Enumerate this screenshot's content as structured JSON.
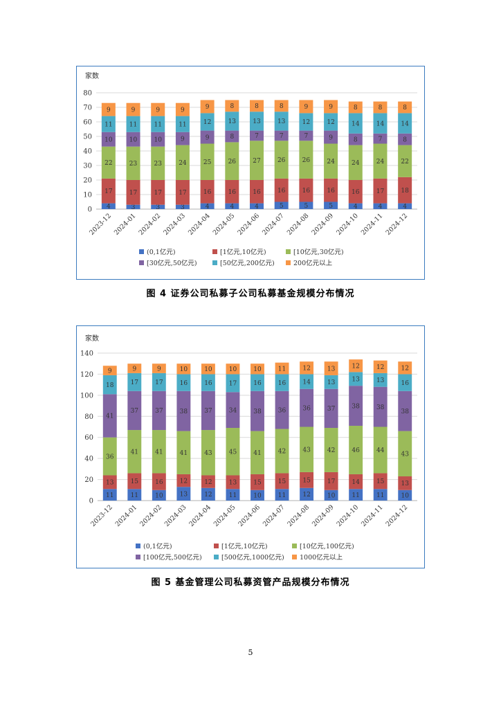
{
  "page": {
    "number": "5"
  },
  "figures": [
    {
      "caption": "图 4   证券公司私募子公司私募基金规模分布情况",
      "colors": [
        "#4472c4",
        "#c0504d",
        "#9bbb59",
        "#8064a2",
        "#4bacc6",
        "#f79646"
      ]
    },
    {
      "caption": "图 5   基金管理公司私募资管产品规模分布情况",
      "colors": [
        "#4472c4",
        "#c0504d",
        "#9bbb59",
        "#8064a2",
        "#4bacc6",
        "#f79646"
      ]
    }
  ],
  "chart_data": [
    {
      "type": "bar",
      "stacked": true,
      "ylabel": "家数",
      "ylim": [
        0,
        80
      ],
      "yticks": [
        0,
        10,
        20,
        30,
        40,
        50,
        60,
        70,
        80
      ],
      "grid": true,
      "legend_position": "bottom",
      "categories": [
        "2023-12",
        "2024-01",
        "2024-02",
        "2024-03",
        "2024-04",
        "2024-05",
        "2024-06",
        "2024-07",
        "2024-08",
        "2024-09",
        "2024-10",
        "2024-11",
        "2024-12"
      ],
      "series": [
        {
          "name": "(0,1亿元)",
          "values": [
            4,
            3,
            3,
            3,
            4,
            4,
            4,
            5,
            5,
            5,
            4,
            4,
            4
          ]
        },
        {
          "name": "[1亿元,10亿元)",
          "values": [
            17,
            17,
            17,
            17,
            16,
            16,
            16,
            16,
            16,
            16,
            16,
            17,
            18
          ]
        },
        {
          "name": "[10亿元,30亿元)",
          "values": [
            22,
            23,
            23,
            24,
            25,
            26,
            27,
            26,
            26,
            24,
            24,
            24,
            22
          ]
        },
        {
          "name": "[30亿元,50亿元)",
          "values": [
            10,
            10,
            10,
            9,
            9,
            8,
            7,
            7,
            7,
            9,
            8,
            7,
            8
          ]
        },
        {
          "name": "[50亿元,200亿元)",
          "values": [
            11,
            11,
            11,
            11,
            12,
            13,
            13,
            13,
            12,
            12,
            14,
            14,
            14
          ]
        },
        {
          "name": "200亿元以上",
          "values": [
            9,
            9,
            9,
            9,
            9,
            8,
            8,
            8,
            9,
            9,
            8,
            8,
            8
          ]
        }
      ]
    },
    {
      "type": "bar",
      "stacked": true,
      "ylabel": "家数",
      "ylim": [
        0,
        140
      ],
      "yticks": [
        0,
        20,
        40,
        60,
        80,
        100,
        120,
        140
      ],
      "grid": true,
      "legend_position": "bottom",
      "categories": [
        "2023-12",
        "2024-01",
        "2024-02",
        "2024-03",
        "2024-04",
        "2024-05",
        "2024-06",
        "2024-07",
        "2024-08",
        "2024-09",
        "2024-10",
        "2024-11",
        "2024-12"
      ],
      "series": [
        {
          "name": "(0,1亿元)",
          "values": [
            11,
            11,
            10,
            13,
            12,
            11,
            10,
            11,
            12,
            10,
            11,
            11,
            10
          ]
        },
        {
          "name": "[1亿元,10亿元)",
          "values": [
            13,
            15,
            16,
            12,
            12,
            13,
            15,
            15,
            15,
            17,
            14,
            15,
            13
          ]
        },
        {
          "name": "[10亿元,100亿元)",
          "values": [
            36,
            41,
            41,
            41,
            43,
            45,
            41,
            42,
            43,
            42,
            46,
            44,
            43
          ]
        },
        {
          "name": "[100亿元,500亿元)",
          "values": [
            41,
            37,
            37,
            38,
            37,
            34,
            38,
            36,
            36,
            37,
            38,
            38,
            38
          ]
        },
        {
          "name": "[500亿元,1000亿元)",
          "values": [
            18,
            17,
            17,
            16,
            16,
            17,
            16,
            16,
            14,
            13,
            13,
            13,
            16
          ]
        },
        {
          "name": "1000亿元以上",
          "values": [
            9,
            9,
            9,
            10,
            10,
            10,
            10,
            11,
            12,
            13,
            12,
            12,
            12
          ]
        }
      ]
    }
  ]
}
